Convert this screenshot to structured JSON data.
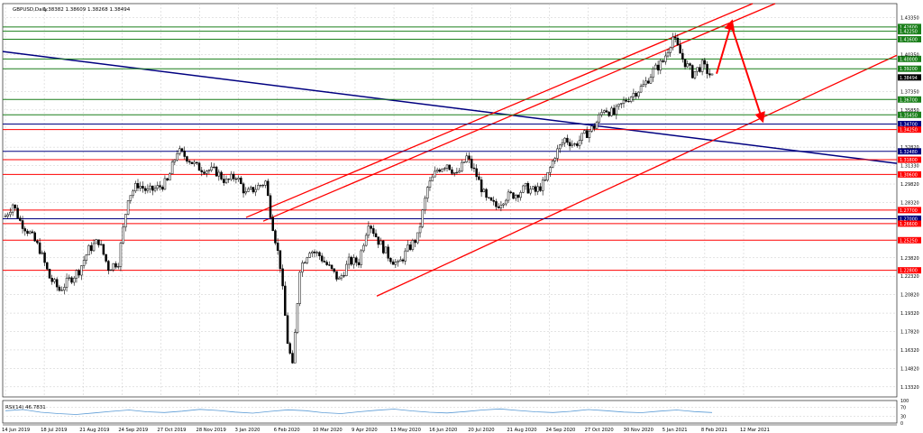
{
  "header": {
    "symbol_label": "GBPUSD,Daily",
    "ohlc_label": "1.38382 1.38609 1.38268 1.38494"
  },
  "indicator": {
    "label": "RSI(14) 46.7831",
    "scale_labels": [
      "100",
      "70",
      "30",
      "0"
    ]
  },
  "colors": {
    "background": "#ffffff",
    "grid": "#c8c8c8",
    "candles": "#000000",
    "support_resistance": "#ff0000",
    "green_levels": "#1a7f1a",
    "blue_trend": "#000080",
    "channel": "#ff0000",
    "arrow": "#ff0000",
    "rsi_line": "#5b9bd5",
    "current_price_box": "#000000"
  },
  "chart_data": {
    "type": "candlestick",
    "title": "GBPUSD,Daily",
    "x_tick_labels": [
      "14 Jun 2019",
      "18 Jul 2019",
      "21 Aug 2019",
      "24 Sep 2019",
      "27 Oct 2019",
      "28 Nov 2019",
      "3 Jan 2020",
      "6 Feb 2020",
      "10 Mar 2020",
      "9 Apr 2020",
      "13 May 2020",
      "16 Jun 2020",
      "20 Jul 2020",
      "21 Aug 2020",
      "24 Sep 2020",
      "27 Oct 2020",
      "30 Nov 2020",
      "5 Jan 2021",
      "8 Feb 2021",
      "12 Mar 2021"
    ],
    "y_tick_labels": [
      "1.43350",
      "1.40350",
      "1.37350",
      "1.35850",
      "1.32820",
      "1.31330",
      "1.29820",
      "1.28320",
      "1.23820",
      "1.22320",
      "1.20820",
      "1.19320",
      "1.17820",
      "1.16320",
      "1.14820",
      "1.13320"
    ],
    "ylim": [
      1.125,
      1.445
    ],
    "current_price": "1.38494",
    "price_path": [
      [
        0,
        1.272
      ],
      [
        3,
        1.282
      ],
      [
        6,
        1.268
      ],
      [
        10,
        1.258
      ],
      [
        14,
        1.245
      ],
      [
        18,
        1.222
      ],
      [
        22,
        1.212
      ],
      [
        26,
        1.22
      ],
      [
        30,
        1.228
      ],
      [
        34,
        1.245
      ],
      [
        38,
        1.252
      ],
      [
        42,
        1.23
      ],
      [
        46,
        1.235
      ],
      [
        50,
        1.288
      ],
      [
        54,
        1.298
      ],
      [
        58,
        1.292
      ],
      [
        62,
        1.295
      ],
      [
        66,
        1.3
      ],
      [
        70,
        1.325
      ],
      [
        74,
        1.32
      ],
      [
        78,
        1.312
      ],
      [
        82,
        1.31
      ],
      [
        86,
        1.308
      ],
      [
        90,
        1.3
      ],
      [
        94,
        1.305
      ],
      [
        98,
        1.29
      ],
      [
        102,
        1.295
      ],
      [
        106,
        1.3
      ],
      [
        108,
        1.275
      ],
      [
        112,
        1.232
      ],
      [
        115,
        1.17
      ],
      [
        117,
        1.149
      ],
      [
        120,
        1.23
      ],
      [
        124,
        1.245
      ],
      [
        128,
        1.24
      ],
      [
        132,
        1.23
      ],
      [
        136,
        1.22
      ],
      [
        140,
        1.235
      ],
      [
        144,
        1.235
      ],
      [
        148,
        1.268
      ],
      [
        152,
        1.252
      ],
      [
        156,
        1.24
      ],
      [
        160,
        1.232
      ],
      [
        164,
        1.245
      ],
      [
        168,
        1.255
      ],
      [
        172,
        1.295
      ],
      [
        176,
        1.31
      ],
      [
        180,
        1.315
      ],
      [
        184,
        1.305
      ],
      [
        188,
        1.32
      ],
      [
        192,
        1.305
      ],
      [
        196,
        1.285
      ],
      [
        200,
        1.28
      ],
      [
        204,
        1.288
      ],
      [
        208,
        1.29
      ],
      [
        212,
        1.295
      ],
      [
        216,
        1.292
      ],
      [
        220,
        1.3
      ],
      [
        224,
        1.322
      ],
      [
        228,
        1.335
      ],
      [
        232,
        1.33
      ],
      [
        236,
        1.338
      ],
      [
        240,
        1.345
      ],
      [
        244,
        1.36
      ],
      [
        248,
        1.355
      ],
      [
        252,
        1.365
      ],
      [
        256,
        1.372
      ],
      [
        260,
        1.378
      ],
      [
        264,
        1.39
      ],
      [
        268,
        1.398
      ],
      [
        272,
        1.418
      ],
      [
        276,
        1.4
      ],
      [
        280,
        1.388
      ],
      [
        284,
        1.395
      ],
      [
        288,
        1.385
      ]
    ],
    "horizontal_levels": [
      {
        "value": "1.42600",
        "label": "1.42600",
        "color": "green"
      },
      {
        "value": "1.42250",
        "label": "1.42250",
        "color": "green"
      },
      {
        "value": "1.41600",
        "label": "1.41600",
        "color": "green"
      },
      {
        "value": "1.40000",
        "label": "1.40000",
        "color": "green"
      },
      {
        "value": "1.39200",
        "label": "1.39200",
        "color": "green"
      },
      {
        "value": "1.36700",
        "label": "1.36700",
        "color": "green"
      },
      {
        "value": "1.35450",
        "label": "1.35450",
        "color": "green"
      },
      {
        "value": "1.34700",
        "label": "1.34700",
        "color": "blue"
      },
      {
        "value": "1.34250",
        "label": "1.34250",
        "color": "red"
      },
      {
        "value": "1.32480",
        "label": "1.32480",
        "color": "blue"
      },
      {
        "value": "1.31800",
        "label": "1.31800",
        "color": "red"
      },
      {
        "value": "1.30600",
        "label": "1.30600",
        "color": "red"
      },
      {
        "value": "1.27700",
        "label": "1.27700",
        "color": "red"
      },
      {
        "value": "1.27000",
        "label": "1.27000",
        "color": "blue"
      },
      {
        "value": "1.26600",
        "label": "1.26600",
        "color": "red"
      },
      {
        "value": "1.25250",
        "label": "1.25250",
        "color": "red"
      },
      {
        "value": "1.22800",
        "label": "1.22800",
        "color": "red"
      }
    ],
    "rsi_values": [
      55,
      60,
      48,
      42,
      38,
      45,
      52,
      58,
      50,
      47,
      53,
      61,
      56,
      49,
      44,
      52,
      59,
      55,
      46,
      42,
      50,
      57,
      62,
      54,
      48,
      45,
      51,
      58,
      63,
      56,
      50,
      47,
      52,
      60,
      55,
      49,
      46,
      53,
      58,
      51,
      47
    ]
  }
}
